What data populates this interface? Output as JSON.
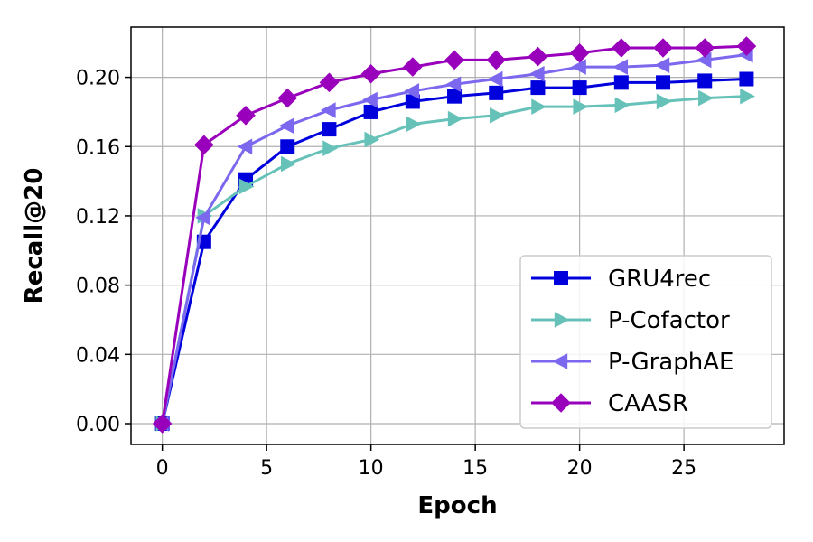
{
  "chart_data": {
    "type": "line",
    "title": "",
    "xlabel": "Epoch",
    "ylabel": "Recall@20",
    "xlim": [
      -1.5,
      29.8
    ],
    "ylim": [
      -0.012,
      0.229
    ],
    "xticks": [
      0,
      5,
      10,
      15,
      20,
      25
    ],
    "xtick_labels": [
      "0",
      "5",
      "10",
      "15",
      "20",
      "25"
    ],
    "yticks": [
      0.0,
      0.04,
      0.08,
      0.12,
      0.16,
      0.2
    ],
    "ytick_labels": [
      "0.00",
      "0.04",
      "0.08",
      "0.12",
      "0.16",
      "0.20"
    ],
    "grid": true,
    "legend_position": "lower-right",
    "x": [
      0,
      2,
      4,
      6,
      8,
      10,
      12,
      14,
      16,
      18,
      20,
      22,
      24,
      26,
      28
    ],
    "series": [
      {
        "name": "GRU4rec",
        "color": "#0000dd",
        "marker": "square",
        "values": [
          0.0,
          0.105,
          0.141,
          0.16,
          0.17,
          0.18,
          0.186,
          0.189,
          0.191,
          0.194,
          0.194,
          0.197,
          0.197,
          0.198,
          0.199
        ]
      },
      {
        "name": "P-Cofactor",
        "color": "#66c2b8",
        "marker": "triangle-right",
        "values": [
          0.0,
          0.12,
          0.137,
          0.15,
          0.159,
          0.164,
          0.173,
          0.176,
          0.178,
          0.183,
          0.183,
          0.184,
          0.186,
          0.188,
          0.189
        ]
      },
      {
        "name": "P-GraphAE",
        "color": "#7b68ee",
        "marker": "triangle-left",
        "values": [
          0.0,
          0.119,
          0.16,
          0.172,
          0.181,
          0.187,
          0.192,
          0.196,
          0.199,
          0.202,
          0.206,
          0.206,
          0.207,
          0.21,
          0.213
        ]
      },
      {
        "name": "CAASR",
        "color": "#9900bb",
        "marker": "diamond",
        "values": [
          0.0,
          0.161,
          0.178,
          0.188,
          0.197,
          0.202,
          0.206,
          0.21,
          0.21,
          0.212,
          0.214,
          0.217,
          0.217,
          0.217,
          0.218
        ]
      }
    ]
  }
}
